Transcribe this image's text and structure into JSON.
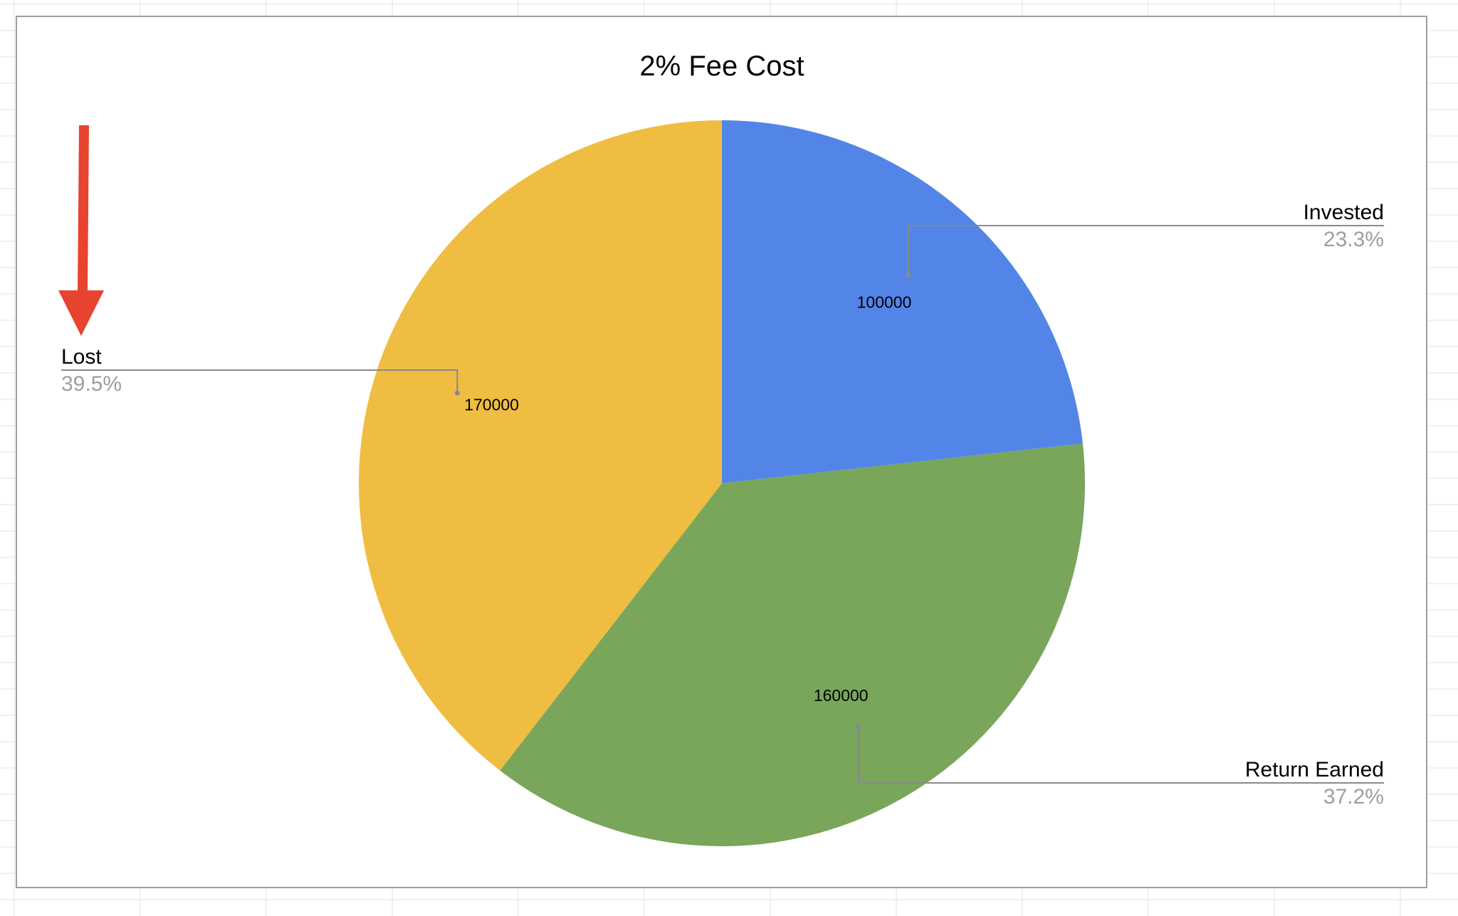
{
  "chart_data": {
    "type": "pie",
    "title": "2% Fee Cost",
    "slices": [
      {
        "label": "Invested",
        "value": 100000,
        "value_label": "100000",
        "percent_label": "23.3%",
        "color": "#5385e8"
      },
      {
        "label": "Return Earned",
        "value": 160000,
        "value_label": "160000",
        "percent_label": "37.2%",
        "color": "#79a65b"
      },
      {
        "label": "Lost",
        "value": 170000,
        "value_label": "170000",
        "percent_label": "39.5%",
        "color": "#efbd42"
      }
    ],
    "start_angle_deg": 0,
    "direction": "clockwise",
    "legend": "callouts"
  },
  "annotation": {
    "icon": "down-arrow-icon",
    "color": "#e8432f",
    "points_to": "Lost"
  },
  "colors": {
    "frame_border": "#9e9e9e",
    "leader_line": "#8a8a8a",
    "percent_text": "#9e9e9e",
    "sheet_grid": "#e3e3e3"
  }
}
